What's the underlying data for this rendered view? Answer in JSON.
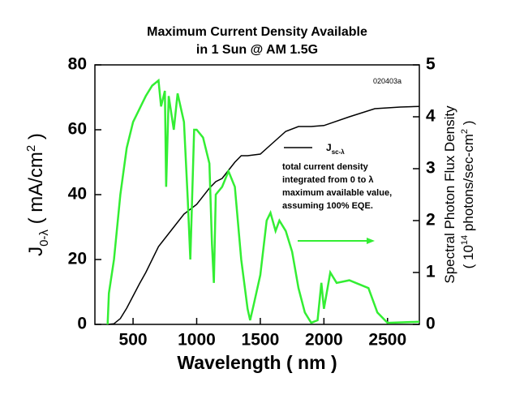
{
  "chart_data": {
    "type": "line",
    "title": [
      "Maximum Current Density Available",
      "in 1 Sun @ AM 1.5G"
    ],
    "x_label": "Wavelength ( nm )",
    "y_label": {
      "main": "J",
      "sub": "0-λ",
      "rest": " ( mA/cm",
      "sup": "2",
      "end": " )"
    },
    "y2_label": {
      "line1": "Spectral Photon Flux Density",
      "start": "( 10",
      "sup": "14",
      "mid": " photons/sec-cm",
      "sup2": "2",
      "end": " )"
    },
    "annotation": "020403a",
    "legend": {
      "main": "J",
      "sub": "sc-λ"
    },
    "notes": [
      "total current density",
      "integrated from 0 to λ",
      "maximum available value,",
      "assuming 100% EQE."
    ],
    "xlim": [
      200,
      2750
    ],
    "xticks": [
      500,
      1000,
      1500,
      2000,
      2500
    ],
    "ylim": [
      0,
      80
    ],
    "yticks": [
      0,
      20,
      40,
      60,
      80
    ],
    "y2lim": [
      0,
      5
    ],
    "y2ticks": [
      0,
      1,
      2,
      3,
      4,
      5
    ],
    "series": [
      {
        "name": "current density",
        "color": "#000000",
        "axis": "y",
        "x": [
          300,
          350,
          400,
          450,
          500,
          550,
          600,
          700,
          800,
          900,
          1000,
          1100,
          1150,
          1200,
          1300,
          1350,
          1400,
          1500,
          1600,
          1700,
          1800,
          1900,
          2000,
          2200,
          2400,
          2600,
          2750
        ],
        "values": [
          0,
          0.2,
          1.8,
          5,
          8.75,
          12.5,
          16,
          24,
          29,
          34,
          37,
          42,
          44,
          45,
          50,
          52,
          52,
          52.5,
          56,
          59.5,
          61,
          61,
          61.3,
          64,
          66.5,
          67,
          67.2
        ]
      },
      {
        "name": "photon flux",
        "color": "#33ee33",
        "axis": "y2",
        "x": [
          300,
          310,
          350,
          400,
          450,
          500,
          550,
          600,
          650,
          700,
          720,
          750,
          760,
          780,
          820,
          850,
          900,
          930,
          950,
          980,
          1000,
          1050,
          1100,
          1120,
          1135,
          1150,
          1200,
          1250,
          1300,
          1350,
          1400,
          1420,
          1450,
          1500,
          1550,
          1580,
          1620,
          1650,
          1700,
          1750,
          1800,
          1850,
          1900,
          1950,
          1980,
          2000,
          2050,
          2100,
          2200,
          2250,
          2350,
          2420,
          2500,
          2750
        ],
        "values": [
          0,
          0.6,
          1.25,
          2.5,
          3.4,
          3.9,
          4.15,
          4.4,
          4.6,
          4.7,
          4.2,
          4.5,
          2.65,
          4.4,
          3.75,
          4.45,
          3.9,
          2.4,
          1.25,
          3.75,
          3.75,
          3.6,
          3.1,
          1.55,
          0.8,
          2.5,
          2.65,
          2.95,
          2.65,
          1.25,
          0.3,
          0.08,
          0.4,
          0.95,
          2.0,
          2.15,
          1.8,
          2.0,
          1.8,
          1.4,
          0.7,
          0.23,
          0.03,
          0.08,
          0.8,
          0.3,
          1.0,
          0.8,
          0.85,
          0.8,
          0.7,
          0.23,
          0.03,
          0.05
        ]
      }
    ]
  }
}
